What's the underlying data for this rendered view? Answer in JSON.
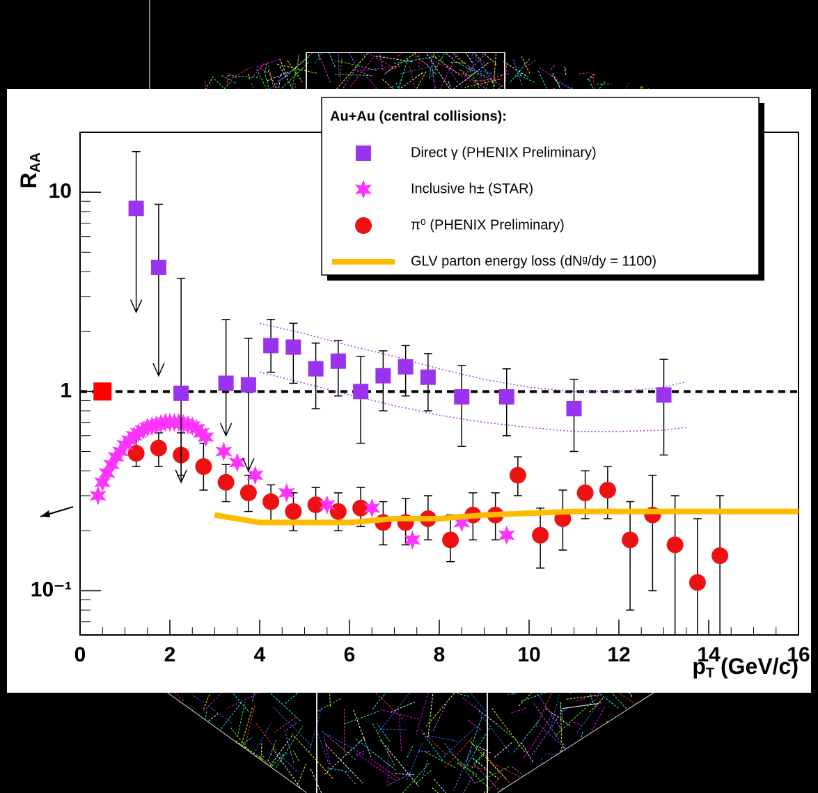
{
  "chart_data": {
    "type": "scatter",
    "ylabel": {
      "main": "R",
      "sub": "AA"
    },
    "xlabel": {
      "main": "p",
      "sub": "T",
      "rest": " (GeV/c)"
    },
    "xlim": [
      0,
      16
    ],
    "xticks": [
      0,
      2,
      4,
      6,
      8,
      10,
      12,
      14,
      16
    ],
    "ylim": [
      0.06,
      20
    ],
    "log_y": true,
    "yticks": [
      {
        "value": 0.1,
        "label": "10⁻¹"
      },
      1,
      10
    ],
    "legend_title": "Au+Au (central collisions):",
    "legend_position": "upper right",
    "reference_line": 1,
    "reference_marker": {
      "x": 0.5,
      "y": 1,
      "color": "#ff0000"
    },
    "series": [
      {
        "name": "Direct γ (PHENIX Preliminary)",
        "marker": "square",
        "color": "#9933ee",
        "x": [
          1.25,
          1.75,
          2.25,
          3.25,
          3.75,
          4.25,
          4.75,
          5.25,
          5.75,
          6.25,
          6.75,
          7.25,
          7.75,
          8.5,
          9.5,
          11.0,
          13.0
        ],
        "values": [
          8.3,
          4.2,
          0.98,
          1.1,
          1.08,
          1.7,
          1.67,
          1.3,
          1.42,
          1.0,
          1.2,
          1.33,
          1.18,
          0.94,
          0.94,
          0.82,
          0.96
        ],
        "upper": [
          16,
          8.7,
          3.7,
          2.3,
          1.85,
          2.3,
          2.2,
          1.75,
          1.8,
          1.5,
          1.6,
          1.7,
          1.55,
          1.35,
          1.3,
          1.15,
          1.45
        ],
        "lower": [
          2.5,
          1.2,
          0.35,
          0.6,
          0.4,
          1.25,
          1.1,
          0.82,
          0.95,
          0.55,
          0.8,
          0.95,
          0.8,
          0.53,
          0.6,
          0.5,
          0.48
        ],
        "upper_limit": [
          true,
          true,
          true,
          true,
          true,
          false,
          false,
          false,
          false,
          false,
          false,
          false,
          false,
          false,
          false,
          false,
          false
        ]
      },
      {
        "name": "Inclusive h± (STAR)",
        "marker": "star",
        "color": "#ff33ff",
        "x": [
          0.4,
          0.5,
          0.6,
          0.7,
          0.8,
          0.9,
          1.0,
          1.1,
          1.2,
          1.3,
          1.4,
          1.5,
          1.6,
          1.7,
          1.8,
          1.9,
          2.0,
          2.1,
          2.2,
          2.3,
          2.4,
          2.5,
          2.6,
          2.7,
          2.8,
          3.2,
          3.5,
          3.9,
          4.6,
          5.5,
          6.5,
          7.4,
          8.5,
          9.5
        ],
        "values": [
          0.3,
          0.35,
          0.39,
          0.43,
          0.47,
          0.5,
          0.54,
          0.57,
          0.6,
          0.62,
          0.64,
          0.66,
          0.67,
          0.68,
          0.69,
          0.7,
          0.7,
          0.7,
          0.7,
          0.69,
          0.68,
          0.67,
          0.65,
          0.62,
          0.59,
          0.5,
          0.44,
          0.38,
          0.31,
          0.27,
          0.26,
          0.18,
          0.22,
          0.19
        ]
      },
      {
        "name": "π⁰ (PHENIX Preliminary)",
        "marker": "circle",
        "color": "#ee1111",
        "x": [
          1.25,
          1.75,
          2.25,
          2.75,
          3.25,
          3.75,
          4.25,
          4.75,
          5.25,
          5.75,
          6.25,
          6.75,
          7.25,
          7.75,
          8.25,
          8.75,
          9.25,
          9.75,
          10.25,
          10.75,
          11.25,
          11.75,
          12.25,
          12.75,
          13.25,
          13.75,
          14.25
        ],
        "values": [
          0.49,
          0.52,
          0.48,
          0.42,
          0.35,
          0.31,
          0.28,
          0.25,
          0.27,
          0.25,
          0.26,
          0.22,
          0.22,
          0.23,
          0.18,
          0.24,
          0.24,
          0.38,
          0.19,
          0.23,
          0.31,
          0.32,
          0.18,
          0.24,
          0.17,
          0.11,
          0.15
        ],
        "upper": [
          0.58,
          0.62,
          0.62,
          0.55,
          0.43,
          0.38,
          0.34,
          0.31,
          0.33,
          0.31,
          0.33,
          0.28,
          0.29,
          0.3,
          0.24,
          0.31,
          0.31,
          0.47,
          0.26,
          0.32,
          0.4,
          0.42,
          0.28,
          0.38,
          0.3,
          0.23,
          0.3
        ],
        "lower": [
          0.42,
          0.42,
          0.38,
          0.32,
          0.28,
          0.25,
          0.22,
          0.2,
          0.22,
          0.2,
          0.21,
          0.17,
          0.17,
          0.18,
          0.14,
          0.18,
          0.18,
          0.3,
          0.13,
          0.16,
          0.23,
          0.23,
          0.08,
          0.1,
          0.06,
          0.06,
          0.06
        ]
      },
      {
        "name": "GLV parton energy loss (dNᵍ/dy = 1100)",
        "marker": "line",
        "color": "#ffbb00",
        "x": [
          3.0,
          4,
          5,
          6,
          7,
          8,
          9,
          10,
          11,
          12,
          13,
          14,
          16
        ],
        "values": [
          0.24,
          0.22,
          0.22,
          0.22,
          0.23,
          0.23,
          0.24,
          0.245,
          0.25,
          0.25,
          0.25,
          0.25,
          0.25
        ]
      }
    ],
    "band": {
      "color": "#aa33ee",
      "x": [
        4,
        5,
        6,
        7,
        8,
        9,
        10,
        11,
        12,
        13,
        13.5
      ],
      "upper": [
        2.2,
        1.95,
        1.7,
        1.5,
        1.3,
        1.15,
        1.05,
        1.0,
        1.0,
        1.05,
        1.12
      ],
      "lower": [
        1.25,
        1.1,
        0.96,
        0.85,
        0.76,
        0.7,
        0.66,
        0.63,
        0.63,
        0.64,
        0.66
      ]
    }
  }
}
